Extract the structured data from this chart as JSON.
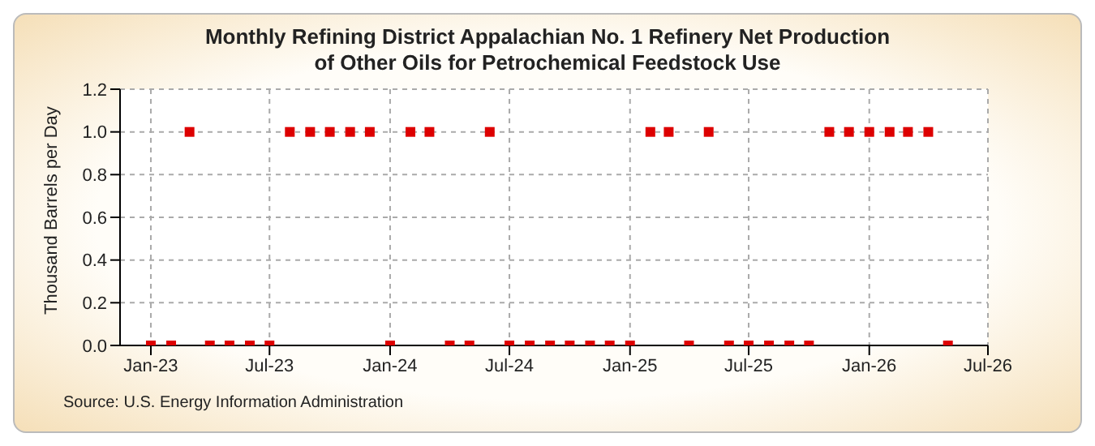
{
  "chart_data": {
    "type": "scatter",
    "title": "Monthly Refining District Appalachian No. 1 Refinery Net Production of Other Oils for Petrochemical Feedstock Use",
    "ylabel": "Thousand Barrels per Day",
    "annotations": [
      "Source: U.S. Energy Information Administration"
    ],
    "x": [
      "2023-01",
      "2023-02",
      "2023-03",
      "2023-04",
      "2023-05",
      "2023-06",
      "2023-07",
      "2023-08",
      "2023-09",
      "2023-10",
      "2023-11",
      "2023-12",
      "2024-01",
      "2024-02",
      "2024-03",
      "2024-04",
      "2024-05",
      "2024-06",
      "2024-07",
      "2024-08",
      "2024-09",
      "2024-10",
      "2024-11",
      "2024-12",
      "2025-01",
      "2025-02",
      "2025-03",
      "2025-04",
      "2025-05",
      "2025-06",
      "2025-07",
      "2025-08",
      "2025-09",
      "2025-10",
      "2025-11",
      "2025-12",
      "2026-01",
      "2026-02",
      "2026-03",
      "2026-04",
      "2026-05"
    ],
    "series": [
      {
        "color": "#dd0000",
        "values": [
          0,
          0,
          1,
          0,
          0,
          0,
          0,
          1,
          1,
          1,
          1,
          1,
          0,
          1,
          1,
          0,
          0,
          1,
          0,
          0,
          0,
          0,
          0,
          0,
          0,
          1,
          1,
          0,
          1,
          0,
          0,
          0,
          0,
          0,
          1,
          1,
          1,
          1,
          1,
          1,
          0
        ]
      }
    ],
    "xlim": [
      "2022-11-15",
      "2026-07-01"
    ],
    "xticks": [
      {
        "value": "2023-01",
        "label": "Jan-23"
      },
      {
        "value": "2023-07",
        "label": "Jul-23"
      },
      {
        "value": "2024-01",
        "label": "Jan-24"
      },
      {
        "value": "2024-07",
        "label": "Jul-24"
      },
      {
        "value": "2025-01",
        "label": "Jan-25"
      },
      {
        "value": "2025-07",
        "label": "Jul-25"
      },
      {
        "value": "2026-01",
        "label": "Jan-26"
      },
      {
        "value": "2026-07",
        "label": "Jul-26"
      }
    ],
    "ylim": [
      0,
      1.2
    ],
    "yticks": [
      {
        "value": 0,
        "label": "0.0"
      },
      {
        "value": 0.2,
        "label": "0.2"
      },
      {
        "value": 0.4,
        "label": "0.4"
      },
      {
        "value": 0.6,
        "label": "0.6"
      },
      {
        "value": 0.8,
        "label": "0.8"
      },
      {
        "value": 1,
        "label": "1.0"
      },
      {
        "value": 1.2,
        "label": "1.2"
      }
    ],
    "grid": true,
    "marker": "square"
  }
}
